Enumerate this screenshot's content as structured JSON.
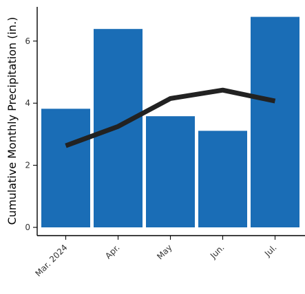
{
  "chart_data": {
    "type": "bar",
    "title": "",
    "xlabel": "",
    "ylabel": "Cumulative Monthly Precipitation (in.)",
    "categories": [
      "Mar. 2024",
      "Apr.",
      "May",
      "Jun.",
      "Jul."
    ],
    "series": [
      {
        "kind": "bar",
        "values": [
          3.82,
          6.39,
          3.58,
          3.11,
          6.78
        ]
      },
      {
        "kind": "line",
        "values": [
          2.63,
          3.25,
          4.15,
          4.42,
          4.07
        ]
      }
    ],
    "ylim": [
      0,
      7
    ],
    "yticks": [
      0,
      2,
      4,
      6
    ],
    "grid": false,
    "legend": "none",
    "colors": {
      "bar": "#1a6db6",
      "line": "#222222"
    }
  }
}
